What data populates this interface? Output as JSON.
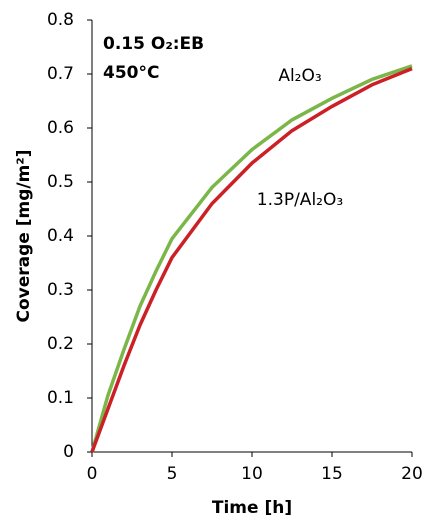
{
  "chart_data": {
    "type": "line",
    "annotations": [
      "0.15 O₂:EB",
      "450°C"
    ],
    "xlabel": "Time [h]",
    "ylabel": "Coverage [mg/m²]",
    "x": [
      0,
      1,
      2,
      3,
      4,
      5,
      7.5,
      10,
      12.5,
      15,
      17.5,
      20
    ],
    "series": [
      {
        "name": "Al₂O₃",
        "color": "#7ab648",
        "values": [
          0,
          0.105,
          0.19,
          0.27,
          0.335,
          0.395,
          0.49,
          0.56,
          0.615,
          0.655,
          0.69,
          0.715
        ]
      },
      {
        "name": "1.3P/Al₂O₃",
        "color": "#cc2027",
        "values": [
          0,
          0.08,
          0.16,
          0.235,
          0.3,
          0.36,
          0.46,
          0.535,
          0.595,
          0.64,
          0.68,
          0.71
        ]
      }
    ],
    "xlim": [
      0,
      20
    ],
    "xticks": [
      0,
      5,
      10,
      15,
      20
    ],
    "ylim": [
      0,
      0.8
    ],
    "yticks": [
      0,
      0.1,
      0.2,
      0.3,
      0.4,
      0.5,
      0.6,
      0.7,
      0.8
    ],
    "grid": false
  }
}
